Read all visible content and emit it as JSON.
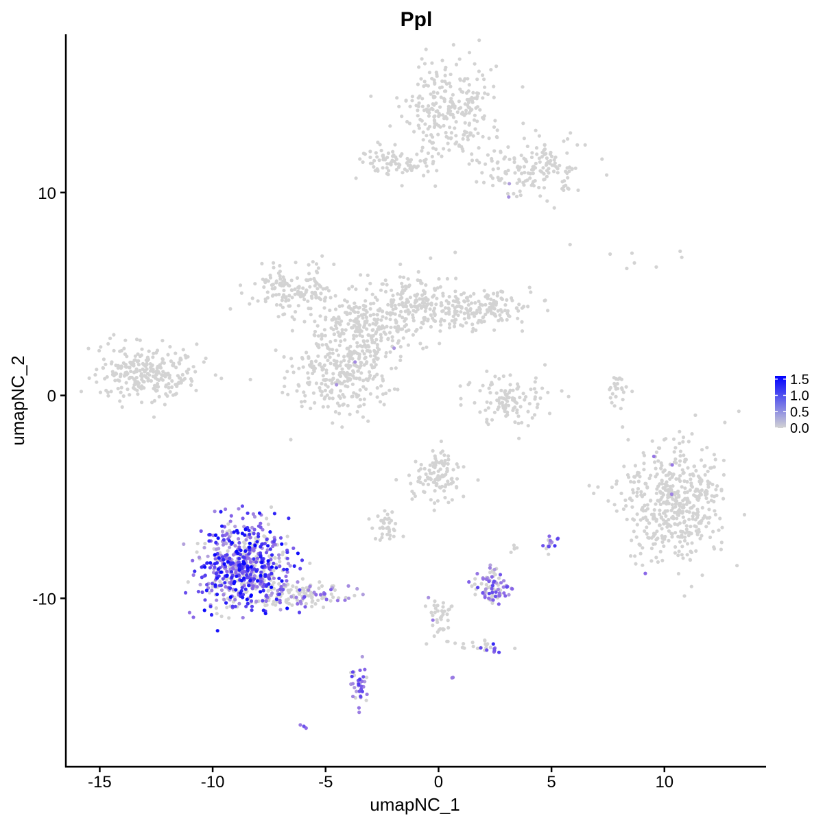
{
  "chart_data": {
    "type": "scatter",
    "title": "Ppl",
    "xlabel": "umapNC_1",
    "ylabel": "umapNC_2",
    "xlim": [
      -16.5,
      14.5
    ],
    "ylim": [
      -18.3,
      17.8
    ],
    "xticks": [
      -15,
      -10,
      -5,
      0,
      5,
      10
    ],
    "xtick_labels": [
      "-15",
      "-10",
      "-5",
      "0",
      "5",
      "10"
    ],
    "yticks": [
      -10,
      0,
      10
    ],
    "ytick_labels": [
      "-10",
      "0",
      "10"
    ],
    "grid": false,
    "legend_position": "right",
    "colorbar": {
      "min": 0.0,
      "max": 1.6,
      "low_color": "#d3d3d3",
      "high_color": "#0000ff",
      "ticks": [
        0.0,
        0.5,
        1.0,
        1.5
      ],
      "tick_labels": [
        "0.0",
        "0.5",
        "1.0",
        "1.5"
      ]
    },
    "clusters": [
      {
        "cx": 0.5,
        "cy": 14.2,
        "sx": 1.0,
        "sy": 1.3,
        "n": 260,
        "expr_frac": 0.0,
        "expr_max": 0.3
      },
      {
        "cx": 4.3,
        "cy": 11.3,
        "sx": 1.2,
        "sy": 0.8,
        "n": 160,
        "expr_frac": 0.01,
        "expr_max": 0.8
      },
      {
        "cx": -2.0,
        "cy": 11.5,
        "sx": 0.8,
        "sy": 0.4,
        "n": 80,
        "expr_frac": 0.0,
        "expr_max": 0.3
      },
      {
        "cx": -13.0,
        "cy": 1.1,
        "sx": 1.2,
        "sy": 0.7,
        "n": 260,
        "expr_frac": 0.0,
        "expr_max": 0.3
      },
      {
        "cx": -6.5,
        "cy": 5.2,
        "sx": 1.0,
        "sy": 0.6,
        "n": 140,
        "expr_frac": 0.0,
        "expr_max": 0.3
      },
      {
        "cx": -3.5,
        "cy": 3.6,
        "sx": 1.2,
        "sy": 0.7,
        "n": 170,
        "expr_frac": 0.0,
        "expr_max": 0.3
      },
      {
        "cx": -1.2,
        "cy": 4.3,
        "sx": 1.0,
        "sy": 0.9,
        "n": 180,
        "expr_frac": 0.01,
        "expr_max": 0.8
      },
      {
        "cx": 1.5,
        "cy": 4.2,
        "sx": 1.3,
        "sy": 0.5,
        "n": 170,
        "expr_frac": 0.0,
        "expr_max": 0.3
      },
      {
        "cx": -4.5,
        "cy": 0.9,
        "sx": 1.0,
        "sy": 1.0,
        "n": 230,
        "expr_frac": 0.01,
        "expr_max": 0.8
      },
      {
        "cx": -3.1,
        "cy": 2.3,
        "sx": 0.6,
        "sy": 0.9,
        "n": 90,
        "expr_frac": 0.01,
        "expr_max": 0.8
      },
      {
        "cx": 3.0,
        "cy": -0.1,
        "sx": 0.9,
        "sy": 0.6,
        "n": 110,
        "expr_frac": 0.0,
        "expr_max": 0.3
      },
      {
        "cx": 8.0,
        "cy": 0.3,
        "sx": 0.2,
        "sy": 0.6,
        "n": 25,
        "expr_frac": 0.0,
        "expr_max": 0.3
      },
      {
        "cx": 10.4,
        "cy": -5.2,
        "sx": 1.2,
        "sy": 1.4,
        "n": 480,
        "expr_frac": 0.01,
        "expr_max": 0.9
      },
      {
        "cx": 0.0,
        "cy": -4.0,
        "sx": 0.6,
        "sy": 0.6,
        "n": 110,
        "expr_frac": 0.0,
        "expr_max": 0.3
      },
      {
        "cx": -2.4,
        "cy": -6.4,
        "sx": 0.3,
        "sy": 0.4,
        "n": 35,
        "expr_frac": 0.03,
        "expr_max": 0.6
      },
      {
        "cx": -8.5,
        "cy": -8.4,
        "sx": 1.0,
        "sy": 1.1,
        "n": 650,
        "expr_frac": 0.72,
        "expr_max": 1.6
      },
      {
        "cx": -5.9,
        "cy": -9.8,
        "sx": 1.0,
        "sy": 0.3,
        "n": 110,
        "expr_frac": 0.35,
        "expr_max": 1.0
      },
      {
        "cx": 2.3,
        "cy": -9.4,
        "sx": 0.4,
        "sy": 0.4,
        "n": 85,
        "expr_frac": 0.6,
        "expr_max": 1.1
      },
      {
        "cx": 0.0,
        "cy": -11.0,
        "sx": 0.3,
        "sy": 0.7,
        "n": 40,
        "expr_frac": 0.08,
        "expr_max": 0.7
      },
      {
        "cx": -3.5,
        "cy": -14.3,
        "sx": 0.2,
        "sy": 0.5,
        "n": 40,
        "expr_frac": 0.85,
        "expr_max": 1.2
      },
      {
        "cx": 5.0,
        "cy": -7.3,
        "sx": 0.15,
        "sy": 0.2,
        "n": 14,
        "expr_frac": 0.8,
        "expr_max": 1.2
      },
      {
        "cx": 2.4,
        "cy": -12.5,
        "sx": 0.2,
        "sy": 0.1,
        "n": 10,
        "expr_frac": 0.8,
        "expr_max": 1.3
      },
      {
        "cx": 1.8,
        "cy": -12.3,
        "sx": 0.6,
        "sy": 0.2,
        "n": 15,
        "expr_frac": 0.0,
        "expr_max": 0.3
      },
      {
        "cx": -6.0,
        "cy": -16.3,
        "sx": 0.08,
        "sy": 0.05,
        "n": 3,
        "expr_frac": 1.0,
        "expr_max": 1.0
      },
      {
        "cx": 0.6,
        "cy": -13.9,
        "sx": 0.05,
        "sy": 0.05,
        "n": 2,
        "expr_frac": 1.0,
        "expr_max": 0.7
      },
      {
        "cx": 3.4,
        "cy": -7.5,
        "sx": 0.1,
        "sy": 0.1,
        "n": 5,
        "expr_frac": 0.0,
        "expr_max": 0.3
      },
      {
        "cx": 8.8,
        "cy": 6.7,
        "sx": 1.0,
        "sy": 0.3,
        "n": 8,
        "expr_frac": 0.0,
        "expr_max": 0.3
      }
    ]
  }
}
